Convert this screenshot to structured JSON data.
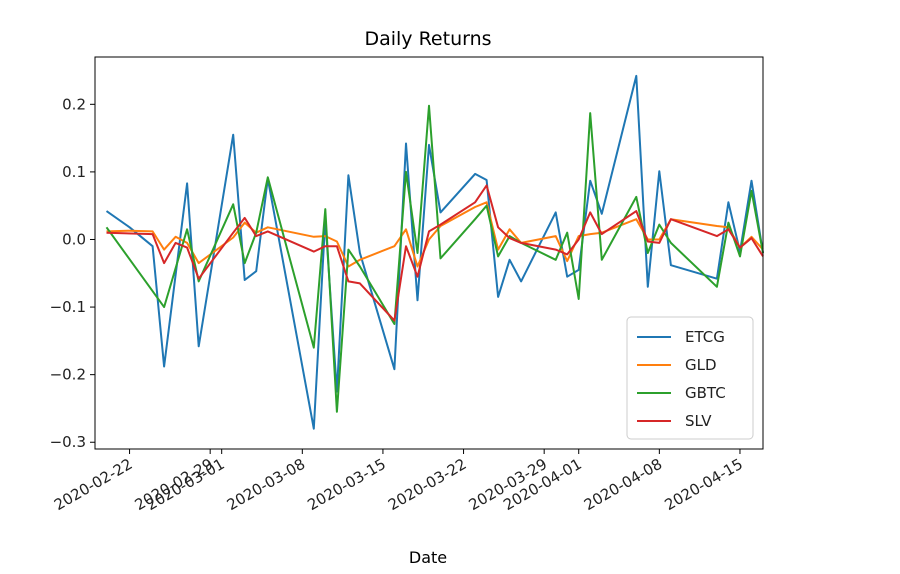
{
  "chart_data": {
    "type": "line",
    "title": "Daily Returns",
    "xlabel": "Date",
    "ylabel": "",
    "xlim": [
      "2020-02-19",
      "2020-04-17"
    ],
    "ylim": [
      -0.31,
      0.27
    ],
    "yticks": [
      0.2,
      0.1,
      0.0,
      -0.1,
      -0.2,
      -0.3
    ],
    "ytick_labels": [
      "0.2",
      "0.1",
      "0.0",
      "−0.1",
      "−0.2",
      "−0.3"
    ],
    "xticks": [
      "2020-02-22",
      "2020-02-29",
      "2020-03-01",
      "2020-03-08",
      "2020-03-15",
      "2020-03-22",
      "2020-03-29",
      "2020-04-01",
      "2020-04-08",
      "2020-04-15"
    ],
    "xtick_labels": [
      "2020-02-22",
      "2020-02-29",
      "2020-03-01",
      "2020-03-08",
      "2020-03-15",
      "2020-03-22",
      "2020-03-29",
      "2020-04-01",
      "2020-04-08",
      "2020-04-15"
    ],
    "legend_position": "lower right",
    "grid": false,
    "series": [
      {
        "name": "ETCG",
        "color": "#1f77b4",
        "x": [
          "2020-02-20",
          "2020-02-22",
          "2020-02-24",
          "2020-02-25",
          "2020-02-27",
          "2020-02-28",
          "2020-03-02",
          "2020-03-03",
          "2020-03-04",
          "2020-03-05",
          "2020-03-09",
          "2020-03-10",
          "2020-03-11",
          "2020-03-12",
          "2020-03-13",
          "2020-03-16",
          "2020-03-17",
          "2020-03-18",
          "2020-03-19",
          "2020-03-20",
          "2020-03-23",
          "2020-03-24",
          "2020-03-25",
          "2020-03-26",
          "2020-03-27",
          "2020-03-30",
          "2020-03-31",
          "2020-04-01",
          "2020-04-02",
          "2020-04-03",
          "2020-04-06",
          "2020-04-07",
          "2020-04-08",
          "2020-04-09",
          "2020-04-13",
          "2020-04-14",
          "2020-04-15",
          "2020-04-16",
          "2020-04-17"
        ],
        "y": [
          0.042,
          0.018,
          -0.01,
          -0.188,
          0.083,
          -0.158,
          0.155,
          -0.06,
          -0.047,
          0.09,
          -0.28,
          0.03,
          -0.225,
          0.095,
          -0.02,
          -0.192,
          0.142,
          -0.09,
          0.14,
          0.04,
          0.097,
          0.088,
          -0.085,
          -0.03,
          -0.062,
          0.04,
          -0.055,
          -0.045,
          0.087,
          0.038,
          0.242,
          -0.07,
          0.101,
          -0.038,
          -0.058,
          0.055,
          -0.018,
          0.087,
          -0.02
        ]
      },
      {
        "name": "GLD",
        "color": "#ff7f0e",
        "x": [
          "2020-02-20",
          "2020-02-22",
          "2020-02-24",
          "2020-02-25",
          "2020-02-26",
          "2020-02-27",
          "2020-02-28",
          "2020-03-02",
          "2020-03-03",
          "2020-03-04",
          "2020-03-05",
          "2020-03-09",
          "2020-03-10",
          "2020-03-11",
          "2020-03-12",
          "2020-03-13",
          "2020-03-16",
          "2020-03-17",
          "2020-03-18",
          "2020-03-19",
          "2020-03-20",
          "2020-03-23",
          "2020-03-24",
          "2020-03-25",
          "2020-03-26",
          "2020-03-27",
          "2020-03-30",
          "2020-03-31",
          "2020-04-01",
          "2020-04-02",
          "2020-04-03",
          "2020-04-06",
          "2020-04-07",
          "2020-04-08",
          "2020-04-09",
          "2020-04-13",
          "2020-04-14",
          "2020-04-15",
          "2020-04-16",
          "2020-04-17"
        ],
        "y": [
          0.012,
          0.013,
          0.012,
          -0.015,
          0.004,
          -0.005,
          -0.035,
          0.003,
          0.025,
          0.01,
          0.018,
          0.004,
          0.005,
          -0.003,
          -0.04,
          -0.03,
          -0.01,
          0.015,
          -0.04,
          0.0,
          0.02,
          0.048,
          0.055,
          -0.015,
          0.015,
          -0.005,
          0.005,
          -0.032,
          0.005,
          0.008,
          0.01,
          0.03,
          0.0,
          0.0,
          0.03,
          0.02,
          0.018,
          -0.012,
          0.004,
          -0.015
        ]
      },
      {
        "name": "GBTC",
        "color": "#2ca02c",
        "x": [
          "2020-02-20",
          "2020-02-25",
          "2020-02-27",
          "2020-02-28",
          "2020-03-02",
          "2020-03-03",
          "2020-03-04",
          "2020-03-05",
          "2020-03-09",
          "2020-03-10",
          "2020-03-11",
          "2020-03-12",
          "2020-03-13",
          "2020-03-16",
          "2020-03-17",
          "2020-03-18",
          "2020-03-19",
          "2020-03-20",
          "2020-03-23",
          "2020-03-24",
          "2020-03-25",
          "2020-03-26",
          "2020-03-27",
          "2020-03-30",
          "2020-03-31",
          "2020-04-01",
          "2020-04-02",
          "2020-04-03",
          "2020-04-06",
          "2020-04-07",
          "2020-04-08",
          "2020-04-09",
          "2020-04-13",
          "2020-04-14",
          "2020-04-15",
          "2020-04-16",
          "2020-04-17"
        ],
        "y": [
          0.018,
          -0.1,
          0.015,
          -0.062,
          0.052,
          -0.035,
          0.01,
          0.092,
          -0.16,
          0.045,
          -0.255,
          -0.015,
          -0.04,
          -0.125,
          0.1,
          -0.02,
          0.198,
          -0.028,
          0.03,
          0.05,
          -0.025,
          0.005,
          -0.005,
          -0.03,
          0.01,
          -0.088,
          0.187,
          -0.03,
          0.063,
          -0.02,
          0.022,
          -0.005,
          -0.07,
          0.025,
          -0.025,
          0.072,
          -0.02
        ]
      },
      {
        "name": "SLV",
        "color": "#d62728",
        "x": [
          "2020-02-20",
          "2020-02-24",
          "2020-02-25",
          "2020-02-26",
          "2020-02-27",
          "2020-02-28",
          "2020-03-02",
          "2020-03-03",
          "2020-03-04",
          "2020-03-05",
          "2020-03-09",
          "2020-03-10",
          "2020-03-11",
          "2020-03-12",
          "2020-03-13",
          "2020-03-16",
          "2020-03-17",
          "2020-03-18",
          "2020-03-19",
          "2020-03-20",
          "2020-03-23",
          "2020-03-24",
          "2020-03-25",
          "2020-03-26",
          "2020-03-27",
          "2020-03-30",
          "2020-03-31",
          "2020-04-01",
          "2020-04-02",
          "2020-04-03",
          "2020-04-06",
          "2020-04-07",
          "2020-04-08",
          "2020-04-09",
          "2020-04-13",
          "2020-04-14",
          "2020-04-15",
          "2020-04-16",
          "2020-04-17"
        ],
        "y": [
          0.01,
          0.008,
          -0.035,
          -0.005,
          -0.012,
          -0.058,
          0.01,
          0.032,
          0.005,
          0.012,
          -0.018,
          -0.01,
          -0.01,
          -0.062,
          -0.065,
          -0.12,
          -0.01,
          -0.055,
          0.012,
          0.022,
          0.055,
          0.08,
          0.018,
          0.002,
          -0.005,
          -0.015,
          -0.022,
          0.0,
          0.04,
          0.008,
          0.042,
          -0.003,
          -0.005,
          0.03,
          0.005,
          0.015,
          -0.012,
          0.002,
          -0.025
        ]
      }
    ]
  }
}
